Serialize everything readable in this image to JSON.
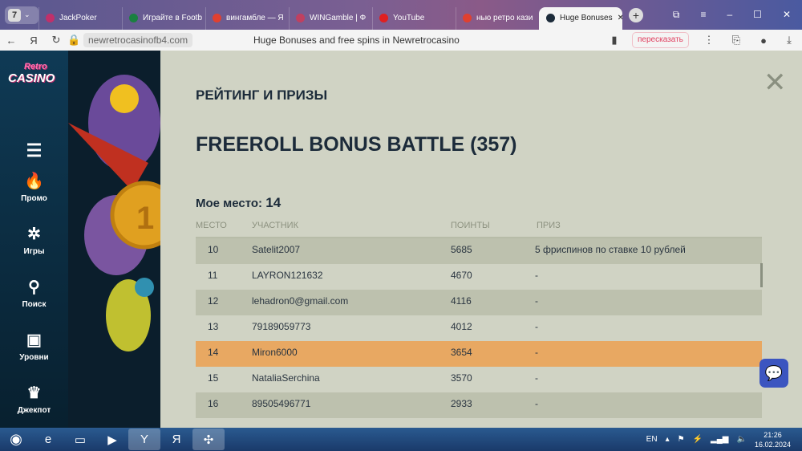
{
  "browser": {
    "tab_count": "7",
    "tabs": [
      {
        "label": "JackPoker",
        "color": "#c0306a"
      },
      {
        "label": "Играйте в Footb",
        "color": "#1a8040"
      },
      {
        "label": "вингамбле — Я",
        "color": "#e04030"
      },
      {
        "label": "WINGamble | Ф",
        "color": "#c04060"
      },
      {
        "label": "YouTube",
        "color": "#e02020"
      },
      {
        "label": "нью ретро кази",
        "color": "#e04030"
      },
      {
        "label": "Huge Bonuses",
        "color": "#1c2b3a",
        "active": true
      }
    ],
    "url": "newretrocasinofb4.com",
    "page_title": "Huge Bonuses and free spins in Newretrocasino",
    "retell_label": "пересказать"
  },
  "nav": {
    "logo": "New Retro CASINO",
    "items": [
      {
        "label": "Промо",
        "icon": "fire-icon"
      },
      {
        "label": "Игры",
        "icon": "wheel-icon"
      },
      {
        "label": "Поиск",
        "icon": "search-icon"
      },
      {
        "label": "Уровни",
        "icon": "chest-icon"
      },
      {
        "label": "Джекпот",
        "icon": "jackpot-icon"
      }
    ]
  },
  "main": {
    "section_title": "РЕЙТИНГ И ПРИЗЫ",
    "tournament_title": "FREEROLL BONUS BATTLE (357)",
    "my_place_label": "Мое место:",
    "my_place_value": "14",
    "columns": [
      "МЕСТО",
      "УЧАСТНИК",
      "ПОИНТЫ",
      "ПРИЗ"
    ],
    "rows": [
      [
        "10",
        "Satelit2007",
        "5685",
        "5 фриспинов по ставке 10 рублей"
      ],
      [
        "11",
        "LAYRON121632",
        "4670",
        "-"
      ],
      [
        "12",
        "lehadron0@gmail.com",
        "4116",
        "-"
      ],
      [
        "13",
        "79189059773",
        "4012",
        "-"
      ],
      [
        "14",
        "Miron6000",
        "3654",
        "-"
      ],
      [
        "15",
        "NataliaSerchina",
        "3570",
        "-"
      ],
      [
        "16",
        "89505496771",
        "2933",
        "-"
      ]
    ],
    "highlight_color": "#e8a862"
  },
  "taskbar": {
    "lang": "EN",
    "time": "21:26",
    "date": "16.02.2024"
  }
}
